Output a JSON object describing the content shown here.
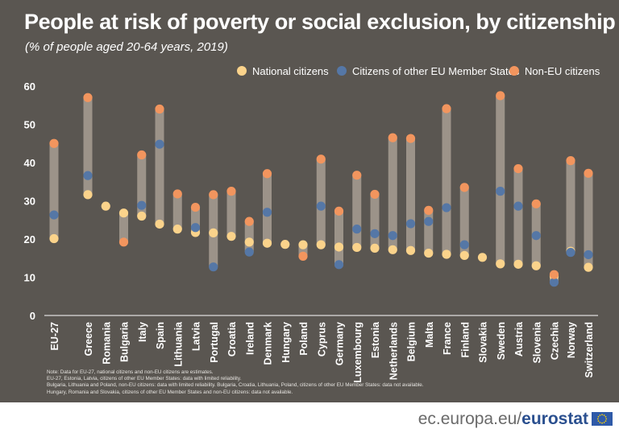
{
  "header": {
    "title": "People at risk of poverty or social exclusion, by citizenship",
    "subtitle": "(% of people aged 20-64 years, 2019)"
  },
  "notes": [
    "Note: Data for EU-27, national citizens and non-EU citizens are estimates.",
    "EU-27, Estonia, Latvia, citizens of other EU Member States: data with limited reliability.",
    "Bulgaria, Lithuania and Poland, non-EU citizens: data with limited reliability. Bulgaria, Croatia, Lithuania, Poland, citizens of other EU Member States: data not available.",
    "Hungary, Romania and Slovakia, citizens of other EU Member States and non-EU citizens: data not available."
  ],
  "footer": {
    "domain": "ec.europa.eu/",
    "brand": "eurostat"
  },
  "colors": {
    "background": "#5a5651",
    "range_bar": "#9c9389",
    "national": "#fbd38b",
    "other_eu": "#5577a6",
    "non_eu": "#f2955e",
    "text": "#ffffff"
  },
  "chart_data": {
    "type": "dot-range",
    "ylim": [
      0,
      60
    ],
    "yticks": [
      0,
      10,
      20,
      30,
      40,
      50,
      60
    ],
    "grid": false,
    "legend_position": "top-right",
    "categories": [
      "EU-27",
      "Greece",
      "Romania",
      "Bulgaria",
      "Italy",
      "Spain",
      "Lithuania",
      "Latvia",
      "Portugal",
      "Croatia",
      "Ireland",
      "Denmark",
      "Hungary",
      "Poland",
      "Cyprus",
      "Germany",
      "Luxembourg",
      "Estonia",
      "Netherlands",
      "Belgium",
      "Malta",
      "France",
      "Finland",
      "Slovakia",
      "Sweden",
      "Austria",
      "Slovenia",
      "Czechia",
      "Norway",
      "Switzerland"
    ],
    "series": [
      {
        "name": "National citizens",
        "key": "national",
        "values": [
          20.1,
          31.6,
          28.6,
          26.8,
          26.0,
          23.9,
          22.6,
          21.7,
          21.6,
          20.7,
          19.2,
          18.9,
          18.6,
          18.5,
          18.5,
          17.9,
          17.8,
          17.6,
          17.2,
          17.0,
          16.3,
          16.0,
          15.7,
          15.2,
          13.5,
          13.4,
          13.0,
          10.3,
          16.8,
          12.6
        ]
      },
      {
        "name": "Citizens of other EU Member States",
        "key": "other_eu",
        "values": [
          26.3,
          36.6,
          null,
          null,
          28.8,
          44.8,
          null,
          23.0,
          12.7,
          null,
          16.6,
          27.0,
          null,
          null,
          28.6,
          13.3,
          22.6,
          21.4,
          20.9,
          24.0,
          24.6,
          28.2,
          18.5,
          null,
          32.5,
          28.6,
          20.9,
          8.7,
          16.5,
          15.9
        ]
      },
      {
        "name": "Non-EU citizens",
        "key": "non_eu",
        "values": [
          45.0,
          57.0,
          null,
          19.2,
          42.0,
          54.0,
          31.8,
          28.3,
          31.6,
          32.5,
          24.6,
          37.1,
          null,
          15.5,
          40.9,
          27.3,
          36.7,
          31.7,
          46.5,
          46.3,
          27.5,
          54.1,
          33.5,
          null,
          57.5,
          38.4,
          29.2,
          10.7,
          40.5,
          37.2
        ]
      }
    ]
  }
}
